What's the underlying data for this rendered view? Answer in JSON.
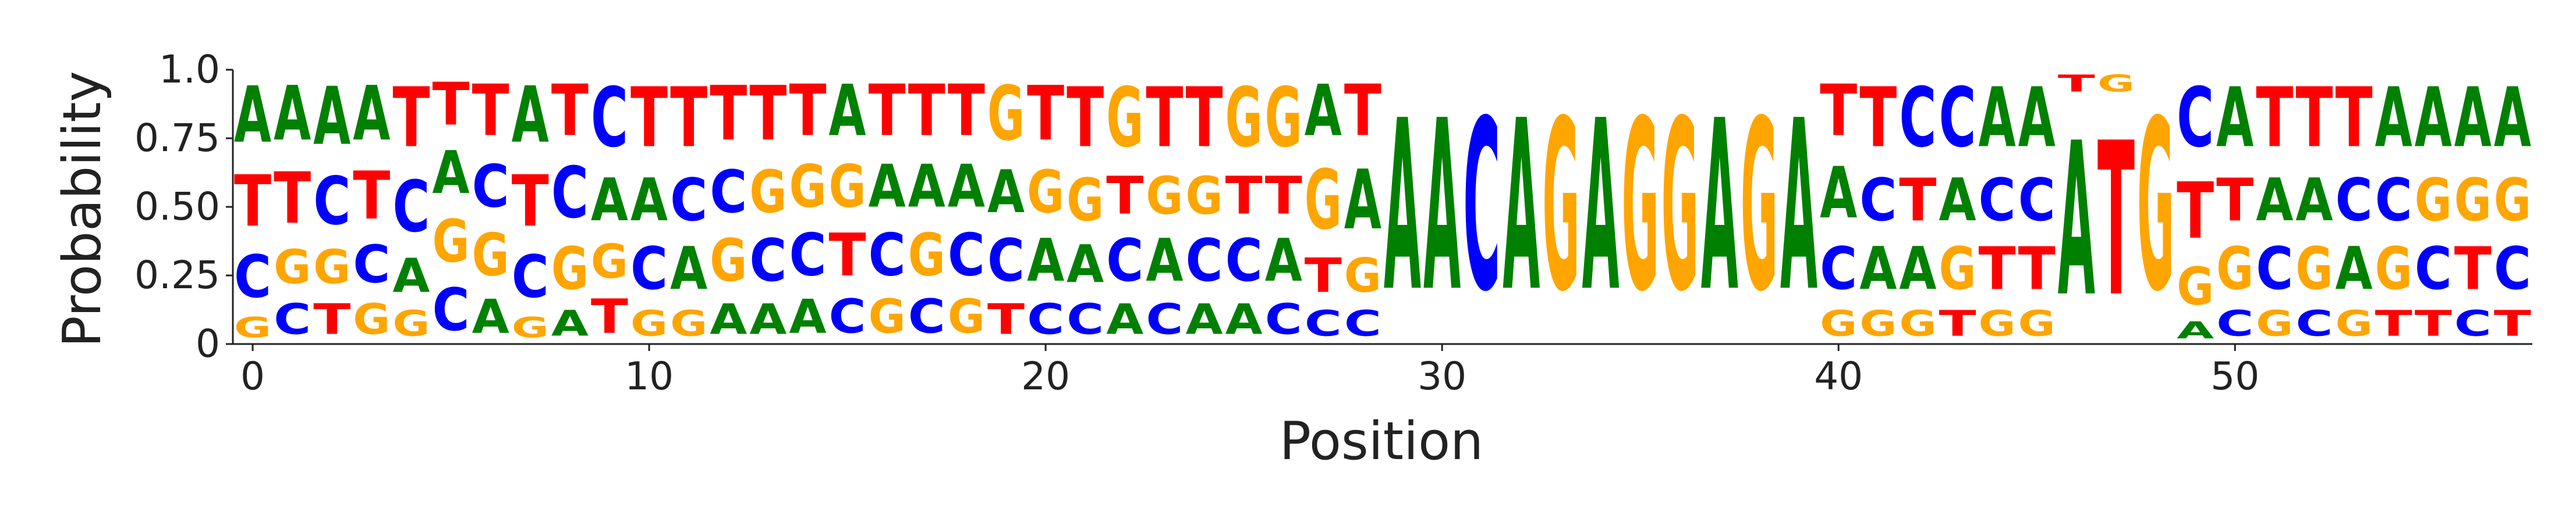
{
  "chart_data": {
    "type": "sequence-logo",
    "title": "",
    "xlabel": "Position",
    "ylabel": "Probability",
    "xlim": [
      -0.5,
      57.5
    ],
    "ylim": [
      0,
      1
    ],
    "xticks": [
      0,
      10,
      20,
      30,
      40,
      50
    ],
    "yticks": [
      0,
      0.25,
      0.5,
      0.75,
      1.0
    ],
    "ytick_labels": [
      "0",
      "0.25",
      "0.50",
      "0.75",
      "1.0"
    ],
    "xtick_labels": [
      "0",
      "10",
      "20",
      "30",
      "40",
      "50"
    ],
    "grid": false,
    "colors": {
      "A": "#008000",
      "C": "#0000ff",
      "G": "#ffa500",
      "T": "#ff0000"
    },
    "positions": [
      {
        "pos": 0,
        "letters": [
          [
            "G",
            0.12
          ],
          [
            "C",
            0.25
          ],
          [
            "T",
            0.3
          ],
          [
            "A",
            0.33
          ]
        ]
      },
      {
        "pos": 1,
        "letters": [
          [
            "C",
            0.18
          ],
          [
            "G",
            0.2
          ],
          [
            "T",
            0.3
          ],
          [
            "A",
            0.32
          ]
        ]
      },
      {
        "pos": 2,
        "letters": [
          [
            "T",
            0.18
          ],
          [
            "G",
            0.2
          ],
          [
            "C",
            0.28
          ],
          [
            "A",
            0.34
          ]
        ]
      },
      {
        "pos": 3,
        "letters": [
          [
            "G",
            0.18
          ],
          [
            "C",
            0.22
          ],
          [
            "T",
            0.28
          ],
          [
            "A",
            0.32
          ]
        ]
      },
      {
        "pos": 4,
        "letters": [
          [
            "G",
            0.15
          ],
          [
            "A",
            0.2
          ],
          [
            "C",
            0.3
          ],
          [
            "T",
            0.35
          ]
        ]
      },
      {
        "pos": 5,
        "letters": [
          [
            "C",
            0.25
          ],
          [
            "G",
            0.25
          ],
          [
            "A",
            0.25
          ],
          [
            "T",
            0.25
          ]
        ]
      },
      {
        "pos": 6,
        "letters": [
          [
            "A",
            0.2
          ],
          [
            "G",
            0.25
          ],
          [
            "C",
            0.25
          ],
          [
            "T",
            0.3
          ]
        ]
      },
      {
        "pos": 7,
        "letters": [
          [
            "G",
            0.12
          ],
          [
            "C",
            0.25
          ],
          [
            "T",
            0.3
          ],
          [
            "A",
            0.33
          ]
        ]
      },
      {
        "pos": 8,
        "letters": [
          [
            "A",
            0.15
          ],
          [
            "G",
            0.25
          ],
          [
            "C",
            0.3
          ],
          [
            "T",
            0.3
          ]
        ]
      },
      {
        "pos": 9,
        "letters": [
          [
            "T",
            0.2
          ],
          [
            "G",
            0.2
          ],
          [
            "A",
            0.25
          ],
          [
            "C",
            0.35
          ]
        ]
      },
      {
        "pos": 10,
        "letters": [
          [
            "G",
            0.15
          ],
          [
            "C",
            0.25
          ],
          [
            "A",
            0.25
          ],
          [
            "T",
            0.35
          ]
        ]
      },
      {
        "pos": 11,
        "letters": [
          [
            "G",
            0.15
          ],
          [
            "A",
            0.25
          ],
          [
            "C",
            0.25
          ],
          [
            "T",
            0.35
          ]
        ]
      },
      {
        "pos": 12,
        "letters": [
          [
            "A",
            0.18
          ],
          [
            "G",
            0.25
          ],
          [
            "C",
            0.25
          ],
          [
            "T",
            0.32
          ]
        ]
      },
      {
        "pos": 13,
        "letters": [
          [
            "A",
            0.18
          ],
          [
            "C",
            0.25
          ],
          [
            "G",
            0.25
          ],
          [
            "T",
            0.32
          ]
        ]
      },
      {
        "pos": 14,
        "letters": [
          [
            "A",
            0.2
          ],
          [
            "C",
            0.25
          ],
          [
            "G",
            0.25
          ],
          [
            "T",
            0.3
          ]
        ]
      },
      {
        "pos": 15,
        "letters": [
          [
            "C",
            0.2
          ],
          [
            "T",
            0.25
          ],
          [
            "G",
            0.25
          ],
          [
            "A",
            0.3
          ]
        ]
      },
      {
        "pos": 16,
        "letters": [
          [
            "G",
            0.2
          ],
          [
            "C",
            0.25
          ],
          [
            "A",
            0.25
          ],
          [
            "T",
            0.3
          ]
        ]
      },
      {
        "pos": 17,
        "letters": [
          [
            "C",
            0.2
          ],
          [
            "G",
            0.25
          ],
          [
            "A",
            0.25
          ],
          [
            "T",
            0.3
          ]
        ]
      },
      {
        "pos": 18,
        "letters": [
          [
            "G",
            0.2
          ],
          [
            "C",
            0.25
          ],
          [
            "A",
            0.25
          ],
          [
            "T",
            0.3
          ]
        ]
      },
      {
        "pos": 19,
        "letters": [
          [
            "T",
            0.18
          ],
          [
            "C",
            0.25
          ],
          [
            "A",
            0.25
          ],
          [
            "G",
            0.32
          ]
        ]
      },
      {
        "pos": 20,
        "letters": [
          [
            "C",
            0.18
          ],
          [
            "A",
            0.25
          ],
          [
            "G",
            0.25
          ],
          [
            "T",
            0.32
          ]
        ]
      },
      {
        "pos": 21,
        "letters": [
          [
            "C",
            0.18
          ],
          [
            "A",
            0.22
          ],
          [
            "G",
            0.25
          ],
          [
            "T",
            0.35
          ]
        ]
      },
      {
        "pos": 22,
        "letters": [
          [
            "A",
            0.18
          ],
          [
            "C",
            0.25
          ],
          [
            "T",
            0.22
          ],
          [
            "G",
            0.35
          ]
        ]
      },
      {
        "pos": 23,
        "letters": [
          [
            "C",
            0.18
          ],
          [
            "A",
            0.25
          ],
          [
            "G",
            0.22
          ],
          [
            "T",
            0.35
          ]
        ]
      },
      {
        "pos": 24,
        "letters": [
          [
            "A",
            0.18
          ],
          [
            "C",
            0.25
          ],
          [
            "G",
            0.22
          ],
          [
            "T",
            0.35
          ]
        ]
      },
      {
        "pos": 25,
        "letters": [
          [
            "A",
            0.18
          ],
          [
            "C",
            0.25
          ],
          [
            "T",
            0.22
          ],
          [
            "G",
            0.35
          ]
        ]
      },
      {
        "pos": 26,
        "letters": [
          [
            "C",
            0.18
          ],
          [
            "A",
            0.25
          ],
          [
            "T",
            0.22
          ],
          [
            "G",
            0.35
          ]
        ]
      },
      {
        "pos": 27,
        "letters": [
          [
            "C",
            0.15
          ],
          [
            "T",
            0.2
          ],
          [
            "G",
            0.35
          ],
          [
            "A",
            0.3
          ]
        ]
      },
      {
        "pos": 28,
        "letters": [
          [
            "C",
            0.15
          ],
          [
            "G",
            0.2
          ],
          [
            "A",
            0.35
          ],
          [
            "T",
            0.3
          ]
        ]
      },
      {
        "pos": 29,
        "letters": [
          [
            "A",
            1.0
          ]
        ]
      },
      {
        "pos": 30,
        "letters": [
          [
            "A",
            1.0
          ]
        ]
      },
      {
        "pos": 31,
        "letters": [
          [
            "C",
            1.0
          ]
        ]
      },
      {
        "pos": 32,
        "letters": [
          [
            "A",
            1.0
          ]
        ]
      },
      {
        "pos": 33,
        "letters": [
          [
            "G",
            1.0
          ]
        ]
      },
      {
        "pos": 34,
        "letters": [
          [
            "A",
            1.0
          ]
        ]
      },
      {
        "pos": 35,
        "letters": [
          [
            "G",
            1.0
          ]
        ]
      },
      {
        "pos": 36,
        "letters": [
          [
            "G",
            1.0
          ]
        ]
      },
      {
        "pos": 37,
        "letters": [
          [
            "A",
            1.0
          ]
        ]
      },
      {
        "pos": 38,
        "letters": [
          [
            "G",
            1.0
          ]
        ]
      },
      {
        "pos": 39,
        "letters": [
          [
            "A",
            1.0
          ]
        ]
      },
      {
        "pos": 40,
        "letters": [
          [
            "G",
            0.15
          ],
          [
            "C",
            0.25
          ],
          [
            "A",
            0.3
          ],
          [
            "T",
            0.3
          ]
        ]
      },
      {
        "pos": 41,
        "letters": [
          [
            "G",
            0.15
          ],
          [
            "A",
            0.25
          ],
          [
            "C",
            0.25
          ],
          [
            "T",
            0.35
          ]
        ]
      },
      {
        "pos": 42,
        "letters": [
          [
            "G",
            0.15
          ],
          [
            "A",
            0.25
          ],
          [
            "T",
            0.25
          ],
          [
            "C",
            0.35
          ]
        ]
      },
      {
        "pos": 43,
        "letters": [
          [
            "T",
            0.15
          ],
          [
            "G",
            0.25
          ],
          [
            "A",
            0.25
          ],
          [
            "C",
            0.35
          ]
        ]
      },
      {
        "pos": 44,
        "letters": [
          [
            "G",
            0.15
          ],
          [
            "T",
            0.25
          ],
          [
            "C",
            0.25
          ],
          [
            "A",
            0.35
          ]
        ]
      },
      {
        "pos": 45,
        "letters": [
          [
            "G",
            0.15
          ],
          [
            "T",
            0.25
          ],
          [
            "C",
            0.25
          ],
          [
            "A",
            0.35
          ]
        ]
      },
      {
        "pos": 46,
        "letters": [
          [
            "A",
            0.9
          ],
          [
            "T",
            0.1
          ]
        ]
      },
      {
        "pos": 47,
        "letters": [
          [
            "T",
            0.9
          ],
          [
            "G",
            0.1
          ]
        ]
      },
      {
        "pos": 48,
        "letters": [
          [
            "G",
            1.0
          ]
        ]
      },
      {
        "pos": 49,
        "letters": [
          [
            "A",
            0.1
          ],
          [
            "G",
            0.22
          ],
          [
            "T",
            0.33
          ],
          [
            "C",
            0.35
          ]
        ]
      },
      {
        "pos": 50,
        "letters": [
          [
            "C",
            0.15
          ],
          [
            "G",
            0.25
          ],
          [
            "T",
            0.25
          ],
          [
            "A",
            0.35
          ]
        ]
      },
      {
        "pos": 51,
        "letters": [
          [
            "G",
            0.15
          ],
          [
            "C",
            0.25
          ],
          [
            "A",
            0.25
          ],
          [
            "T",
            0.35
          ]
        ]
      },
      {
        "pos": 52,
        "letters": [
          [
            "C",
            0.15
          ],
          [
            "G",
            0.25
          ],
          [
            "A",
            0.25
          ],
          [
            "T",
            0.35
          ]
        ]
      },
      {
        "pos": 53,
        "letters": [
          [
            "G",
            0.15
          ],
          [
            "A",
            0.25
          ],
          [
            "C",
            0.25
          ],
          [
            "T",
            0.35
          ]
        ]
      },
      {
        "pos": 54,
        "letters": [
          [
            "T",
            0.15
          ],
          [
            "G",
            0.25
          ],
          [
            "C",
            0.25
          ],
          [
            "A",
            0.35
          ]
        ]
      },
      {
        "pos": 55,
        "letters": [
          [
            "T",
            0.15
          ],
          [
            "C",
            0.25
          ],
          [
            "G",
            0.25
          ],
          [
            "A",
            0.35
          ]
        ]
      },
      {
        "pos": 56,
        "letters": [
          [
            "C",
            0.15
          ],
          [
            "T",
            0.25
          ],
          [
            "G",
            0.25
          ],
          [
            "A",
            0.35
          ]
        ]
      },
      {
        "pos": 57,
        "letters": [
          [
            "T",
            0.15
          ],
          [
            "C",
            0.25
          ],
          [
            "G",
            0.25
          ],
          [
            "A",
            0.35
          ]
        ]
      }
    ]
  }
}
